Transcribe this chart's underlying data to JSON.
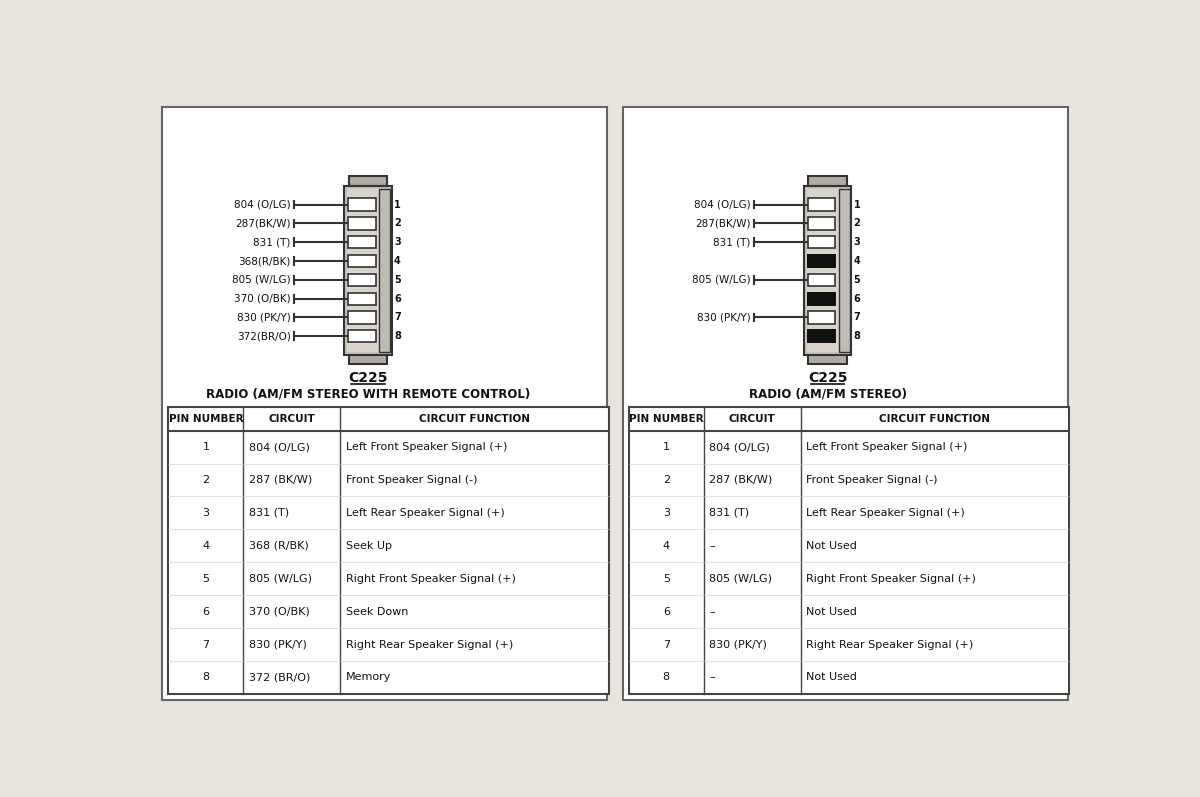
{
  "bg_color": "#e8e4de",
  "panel_bg": "#ffffff",
  "left_diagram": {
    "title": "C225",
    "subtitle": "RADIO (AM/FM STEREO WITH REMOTE CONTROL)",
    "pins": [
      {
        "num": 1,
        "label": "804 (O/LG)",
        "has_wire": true,
        "filled": false
      },
      {
        "num": 2,
        "label": "287(BK/W)",
        "has_wire": true,
        "filled": false
      },
      {
        "num": 3,
        "label": "831 (T)",
        "has_wire": true,
        "filled": false
      },
      {
        "num": 4,
        "label": "368(R/BK)",
        "has_wire": true,
        "filled": false
      },
      {
        "num": 5,
        "label": "805 (W/LG)",
        "has_wire": true,
        "filled": false
      },
      {
        "num": 6,
        "label": "370 (O/BK)",
        "has_wire": true,
        "filled": false
      },
      {
        "num": 7,
        "label": "830 (PK/Y)",
        "has_wire": true,
        "filled": false
      },
      {
        "num": 8,
        "label": "372(BR/O)",
        "has_wire": true,
        "filled": false
      }
    ],
    "table_headers": [
      "PIN NUMBER",
      "CIRCUIT",
      "CIRCUIT FUNCTION"
    ],
    "table_rows": [
      [
        "1",
        "804 (O/LG)",
        "Left Front Speaker Signal (+)"
      ],
      [
        "2",
        "287 (BK/W)",
        "Front Speaker Signal (-)"
      ],
      [
        "3",
        "831 (T)",
        "Left Rear Speaker Signal (+)"
      ],
      [
        "4",
        "368 (R/BK)",
        "Seek Up"
      ],
      [
        "5",
        "805 (W/LG)",
        "Right Front Speaker Signal (+)"
      ],
      [
        "6",
        "370 (O/BK)",
        "Seek Down"
      ],
      [
        "7",
        "830 (PK/Y)",
        "Right Rear Speaker Signal (+)"
      ],
      [
        "8",
        "372 (BR/O)",
        "Memory"
      ]
    ]
  },
  "right_diagram": {
    "title": "C225",
    "subtitle": "RADIO (AM/FM STEREO)",
    "pins": [
      {
        "num": 1,
        "label": "804 (O/LG)",
        "has_wire": true,
        "filled": false
      },
      {
        "num": 2,
        "label": "287(BK/W)",
        "has_wire": true,
        "filled": false
      },
      {
        "num": 3,
        "label": "831 (T)",
        "has_wire": true,
        "filled": false
      },
      {
        "num": 4,
        "label": "",
        "has_wire": false,
        "filled": true
      },
      {
        "num": 5,
        "label": "805 (W/LG)",
        "has_wire": true,
        "filled": false
      },
      {
        "num": 6,
        "label": "",
        "has_wire": false,
        "filled": true
      },
      {
        "num": 7,
        "label": "830 (PK/Y)",
        "has_wire": true,
        "filled": false
      },
      {
        "num": 8,
        "label": "",
        "has_wire": false,
        "filled": true
      }
    ],
    "table_headers": [
      "PIN NUMBER",
      "CIRCUIT",
      "CIRCUIT FUNCTION"
    ],
    "table_rows": [
      [
        "1",
        "804 (O/LG)",
        "Left Front Speaker Signal (+)"
      ],
      [
        "2",
        "287 (BK/W)",
        "Front Speaker Signal (-)"
      ],
      [
        "3",
        "831 (T)",
        "Left Rear Speaker Signal (+)"
      ],
      [
        "4",
        "–",
        "Not Used"
      ],
      [
        "5",
        "805 (W/LG)",
        "Right Front Speaker Signal (+)"
      ],
      [
        "6",
        "–",
        "Not Used"
      ],
      [
        "7",
        "830 (PK/Y)",
        "Right Rear Speaker Signal (+)"
      ],
      [
        "8",
        "–",
        "Not Used"
      ]
    ]
  }
}
